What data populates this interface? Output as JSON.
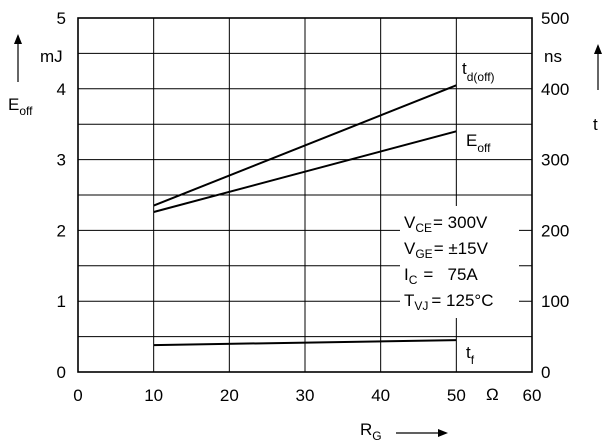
{
  "chart_data": {
    "type": "line",
    "xlim": [
      0,
      60
    ],
    "x_ticks": [
      "0",
      "10",
      "20",
      "30",
      "40",
      "50",
      "60"
    ],
    "x_unit": "Ω",
    "xlabel_main": "R",
    "xlabel_sub": "G",
    "ylim_left": [
      0,
      5
    ],
    "y_ticks_left": [
      "0",
      "1",
      "2",
      "3",
      "4",
      "5"
    ],
    "y_unit_left": "mJ",
    "ylabel_left_main": "E",
    "ylabel_left_sub": "off",
    "ylim_right": [
      0,
      500
    ],
    "y_ticks_right": [
      "0",
      "100",
      "200",
      "300",
      "400",
      "500"
    ],
    "y_unit_right": "ns",
    "ylabel_right": "t",
    "grid": true,
    "series": [
      {
        "label_main": "t",
        "label_sub": "d(off)",
        "axis": "right",
        "x": [
          10,
          50
        ],
        "y": [
          235,
          405
        ]
      },
      {
        "label_main": "E",
        "label_sub": "off",
        "axis": "left",
        "x": [
          10,
          50
        ],
        "y": [
          2.26,
          3.4
        ]
      },
      {
        "label_main": "t",
        "label_sub": "f",
        "axis": "right",
        "x": [
          10,
          50
        ],
        "y": [
          38,
          45
        ]
      }
    ],
    "conditions": [
      {
        "main": "V",
        "sub": "CE",
        "value": "= 300V"
      },
      {
        "main": "V",
        "sub": "GE",
        "value": "= ±15V"
      },
      {
        "main": "I",
        "sub": "C",
        "value": "=   75A"
      },
      {
        "main": "T",
        "sub": "VJ",
        "value": "= 125°C"
      }
    ]
  }
}
